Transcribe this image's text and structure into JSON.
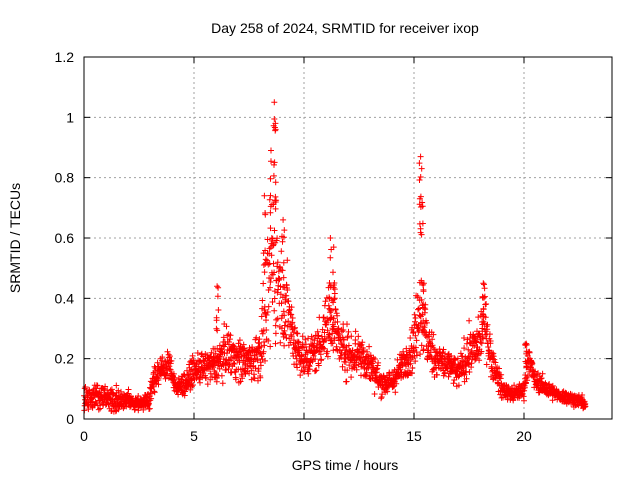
{
  "chart_data": {
    "type": "scatter",
    "title": "Day 258 of 2024, SRMTID for receiver ixop",
    "xlabel": "GPS time / hours",
    "ylabel": "SRMTID / TECUs",
    "xlim": [
      0,
      24
    ],
    "ylim": [
      0,
      1.2
    ],
    "x_ticks": [
      0,
      5,
      10,
      15,
      20
    ],
    "x_tick_labels": [
      "0",
      "5",
      "10",
      "15",
      "20"
    ],
    "y_ticks": [
      0,
      0.2,
      0.4,
      0.6,
      0.8,
      1.0,
      1.2
    ],
    "y_tick_labels": [
      "0",
      "0.2",
      "0.4",
      "0.6",
      "0.8",
      "1",
      "1.2"
    ],
    "grid": true,
    "marker": "plus",
    "color": "#ff0000",
    "series": [
      {
        "name": "SRMTID",
        "envelope": [
          [
            0.0,
            0.07,
            0.05
          ],
          [
            0.5,
            0.08,
            0.04
          ],
          [
            1.0,
            0.07,
            0.04
          ],
          [
            1.5,
            0.06,
            0.04
          ],
          [
            2.0,
            0.06,
            0.03
          ],
          [
            2.5,
            0.05,
            0.02
          ],
          [
            3.0,
            0.07,
            0.03
          ],
          [
            3.2,
            0.14,
            0.04
          ],
          [
            3.5,
            0.16,
            0.04
          ],
          [
            3.9,
            0.18,
            0.04
          ],
          [
            4.2,
            0.1,
            0.03
          ],
          [
            4.6,
            0.12,
            0.04
          ],
          [
            5.0,
            0.16,
            0.04
          ],
          [
            5.5,
            0.17,
            0.05
          ],
          [
            6.0,
            0.18,
            0.06
          ],
          [
            6.5,
            0.23,
            0.07
          ],
          [
            7.0,
            0.2,
            0.07
          ],
          [
            7.5,
            0.19,
            0.06
          ],
          [
            8.0,
            0.22,
            0.09
          ],
          [
            8.3,
            0.35,
            0.15
          ],
          [
            8.6,
            0.55,
            0.25
          ],
          [
            8.8,
            0.45,
            0.2
          ],
          [
            9.0,
            0.4,
            0.18
          ],
          [
            9.3,
            0.35,
            0.12
          ],
          [
            9.6,
            0.25,
            0.08
          ],
          [
            10.0,
            0.2,
            0.07
          ],
          [
            10.5,
            0.22,
            0.07
          ],
          [
            11.0,
            0.3,
            0.1
          ],
          [
            11.3,
            0.35,
            0.12
          ],
          [
            11.6,
            0.25,
            0.08
          ],
          [
            12.0,
            0.22,
            0.08
          ],
          [
            12.5,
            0.22,
            0.08
          ],
          [
            13.0,
            0.18,
            0.06
          ],
          [
            13.5,
            0.12,
            0.04
          ],
          [
            14.0,
            0.12,
            0.04
          ],
          [
            14.5,
            0.18,
            0.05
          ],
          [
            15.0,
            0.25,
            0.08
          ],
          [
            15.3,
            0.4,
            0.18
          ],
          [
            15.6,
            0.25,
            0.08
          ],
          [
            16.0,
            0.2,
            0.06
          ],
          [
            16.5,
            0.18,
            0.05
          ],
          [
            17.0,
            0.15,
            0.05
          ],
          [
            17.5,
            0.22,
            0.07
          ],
          [
            18.0,
            0.25,
            0.08
          ],
          [
            18.2,
            0.35,
            0.08
          ],
          [
            18.5,
            0.2,
            0.06
          ],
          [
            19.0,
            0.1,
            0.03
          ],
          [
            19.5,
            0.08,
            0.02
          ],
          [
            20.0,
            0.1,
            0.03
          ],
          [
            20.2,
            0.2,
            0.05
          ],
          [
            20.5,
            0.13,
            0.03
          ],
          [
            21.0,
            0.1,
            0.03
          ],
          [
            21.5,
            0.08,
            0.02
          ],
          [
            22.0,
            0.07,
            0.02
          ],
          [
            22.5,
            0.06,
            0.02
          ],
          [
            22.8,
            0.05,
            0.02
          ]
        ],
        "peaks": [
          [
            6.05,
            0.44
          ],
          [
            8.2,
            0.74
          ],
          [
            8.5,
            0.89
          ],
          [
            8.65,
            1.05
          ],
          [
            8.7,
            0.98
          ],
          [
            9.05,
            0.66
          ],
          [
            11.2,
            0.6
          ],
          [
            11.35,
            0.57
          ],
          [
            15.3,
            0.87
          ],
          [
            15.35,
            0.83
          ],
          [
            15.45,
            0.45
          ],
          [
            18.15,
            0.45
          ],
          [
            20.1,
            0.25
          ]
        ],
        "point_count": 2200
      }
    ]
  }
}
